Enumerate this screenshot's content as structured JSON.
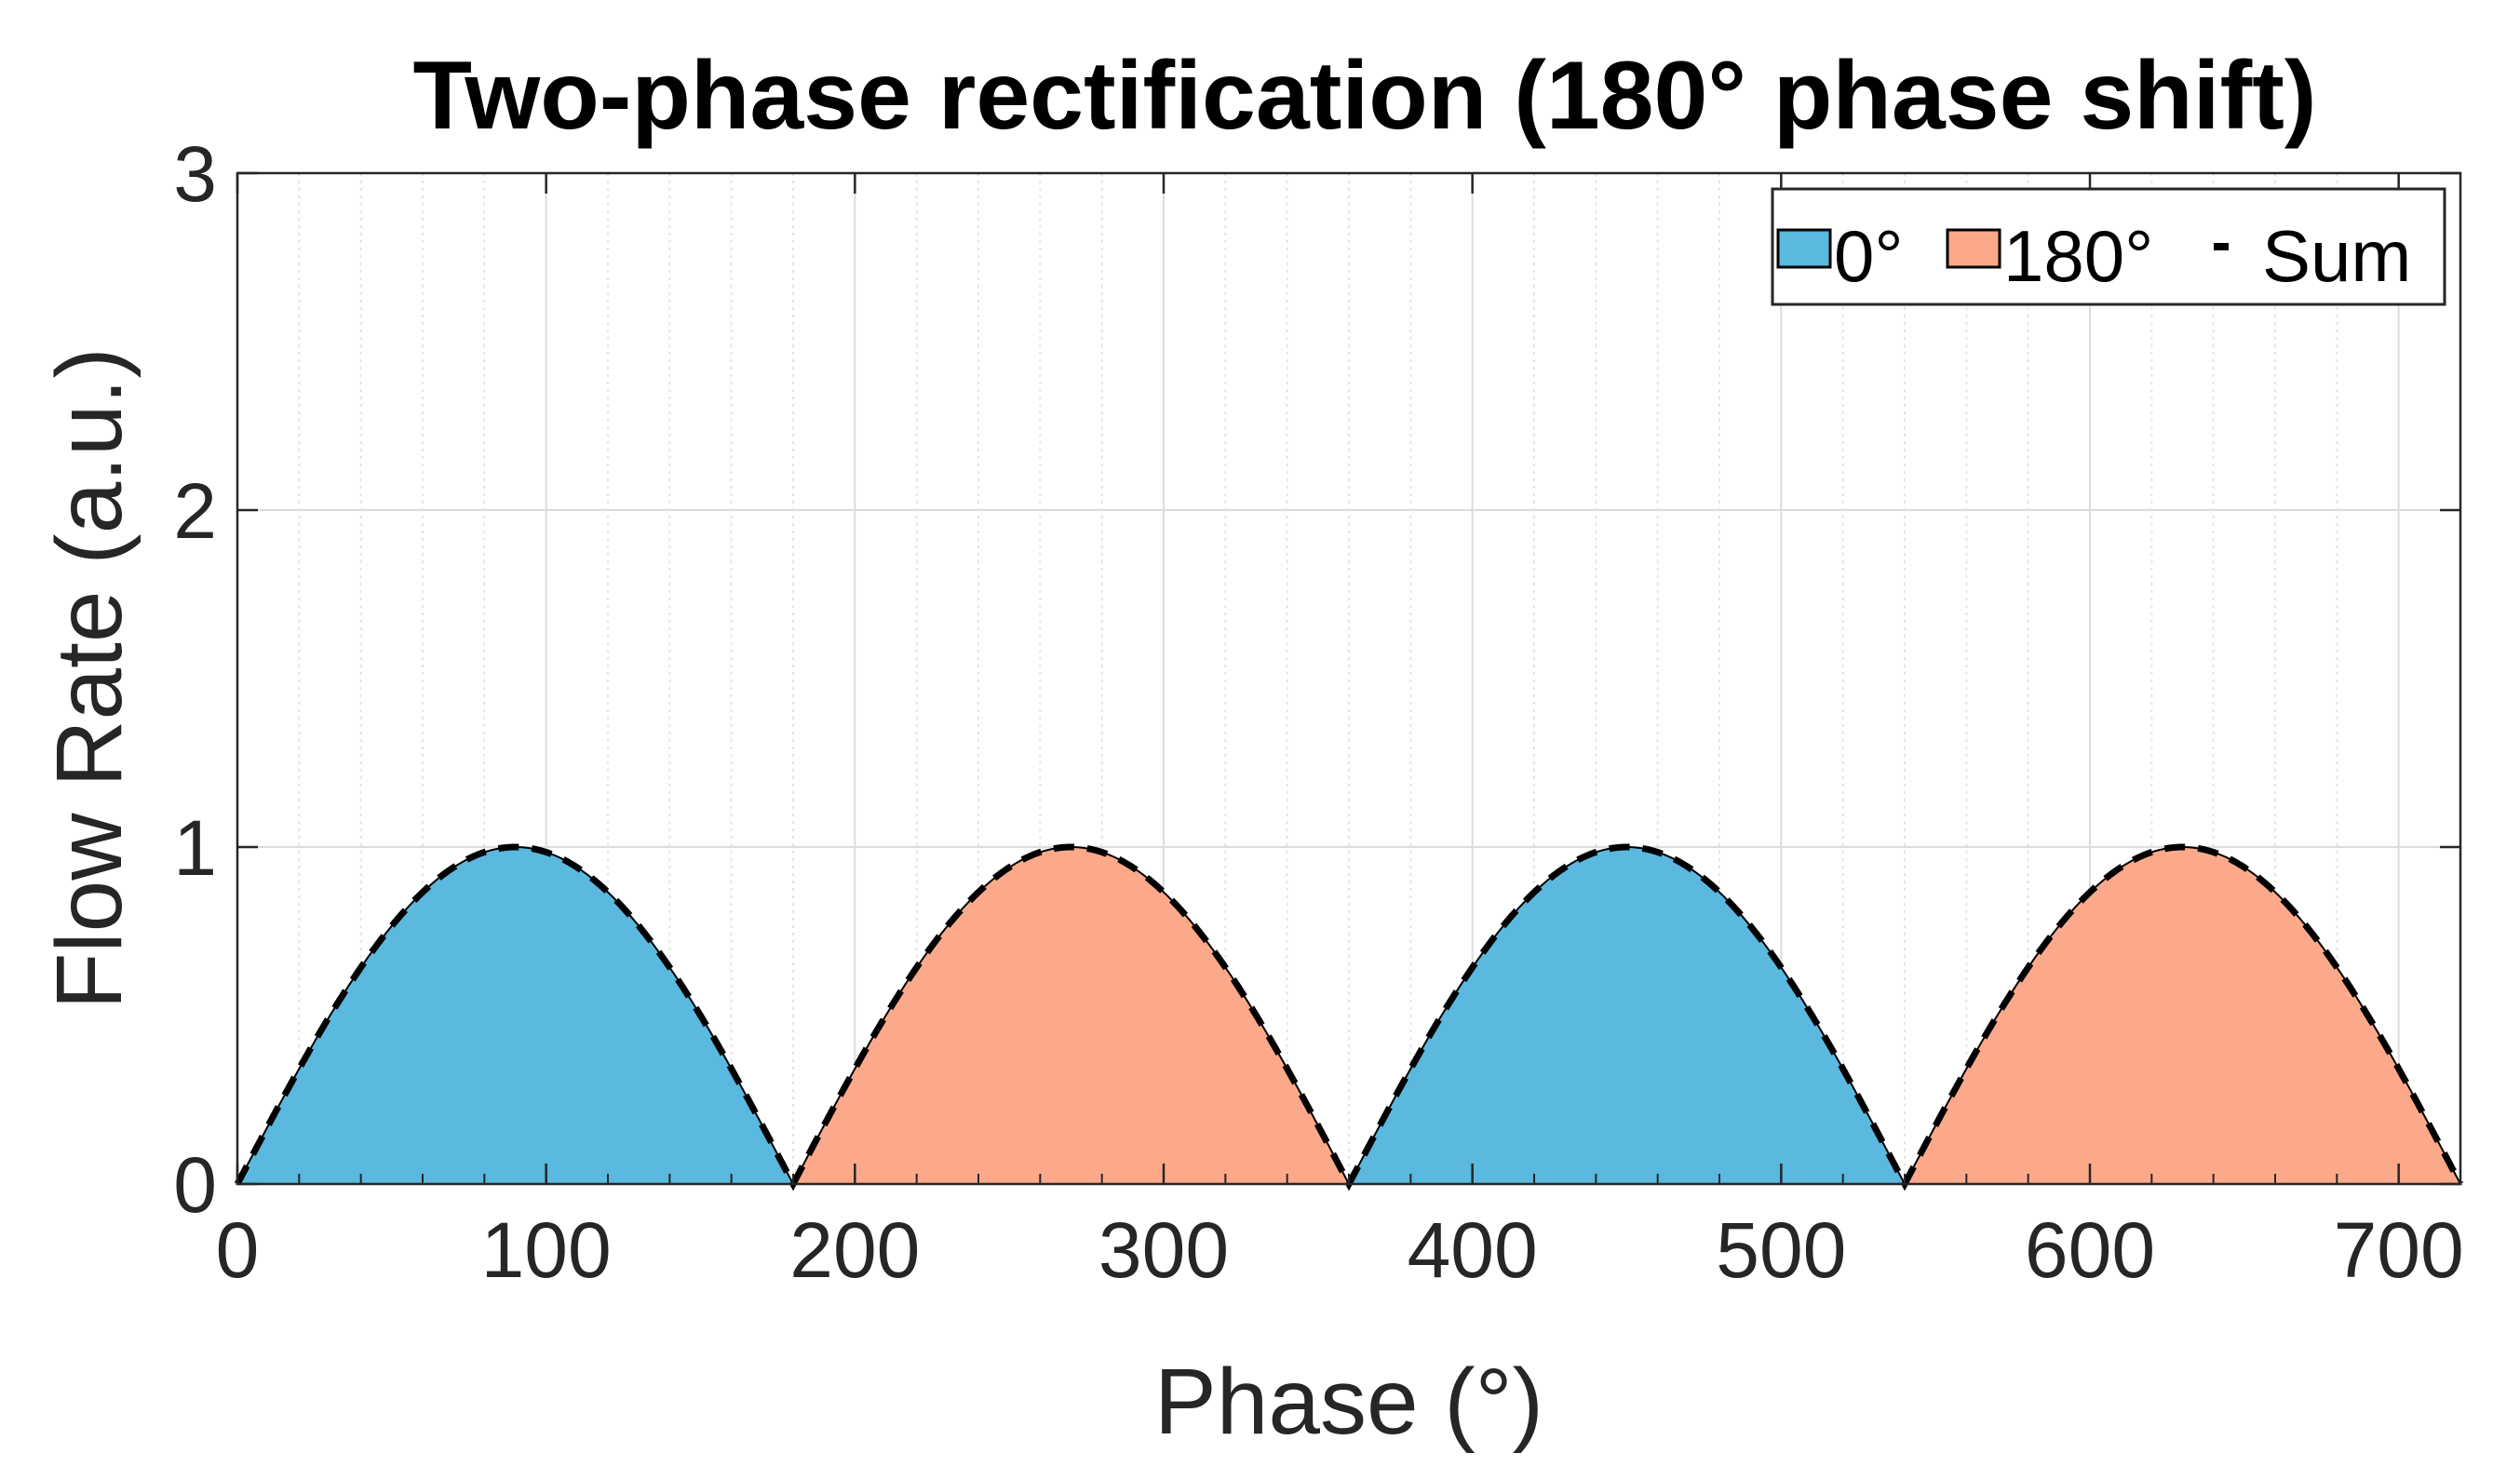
{
  "chart_data": {
    "type": "area",
    "title": "Two-phase rectification (180° phase shift)",
    "xlabel": "Phase (°)",
    "ylabel": "Flow Rate (a.u.)",
    "xlim": [
      0,
      720
    ],
    "ylim": [
      0,
      3
    ],
    "xticks": [
      0,
      100,
      200,
      300,
      400,
      500,
      600,
      700
    ],
    "yticks": [
      0,
      1,
      2,
      3
    ],
    "grid": true,
    "minor_grid": true,
    "legend_position": "top-right",
    "series": [
      {
        "name": "0°",
        "kind": "filled-area",
        "color": "#5BB8DE",
        "formula": "max(0, sin(x°))",
        "lobes": [
          {
            "start": 0,
            "peak_x": 90,
            "end": 180,
            "peak_value": 1
          },
          {
            "start": 360,
            "peak_x": 450,
            "end": 540,
            "peak_value": 1
          }
        ]
      },
      {
        "name": "180°",
        "kind": "filled-area",
        "color": "#FBA98A",
        "formula": "max(0, sin(x° - 180°))",
        "lobes": [
          {
            "start": 180,
            "peak_x": 270,
            "end": 360,
            "peak_value": 1
          },
          {
            "start": 540,
            "peak_x": 630,
            "end": 720,
            "peak_value": 1
          }
        ]
      },
      {
        "name": "Sum",
        "kind": "dashed-line",
        "color": "#000000",
        "formula": "|sin(x°)|",
        "min_value": 0,
        "max_value": 1
      }
    ]
  }
}
